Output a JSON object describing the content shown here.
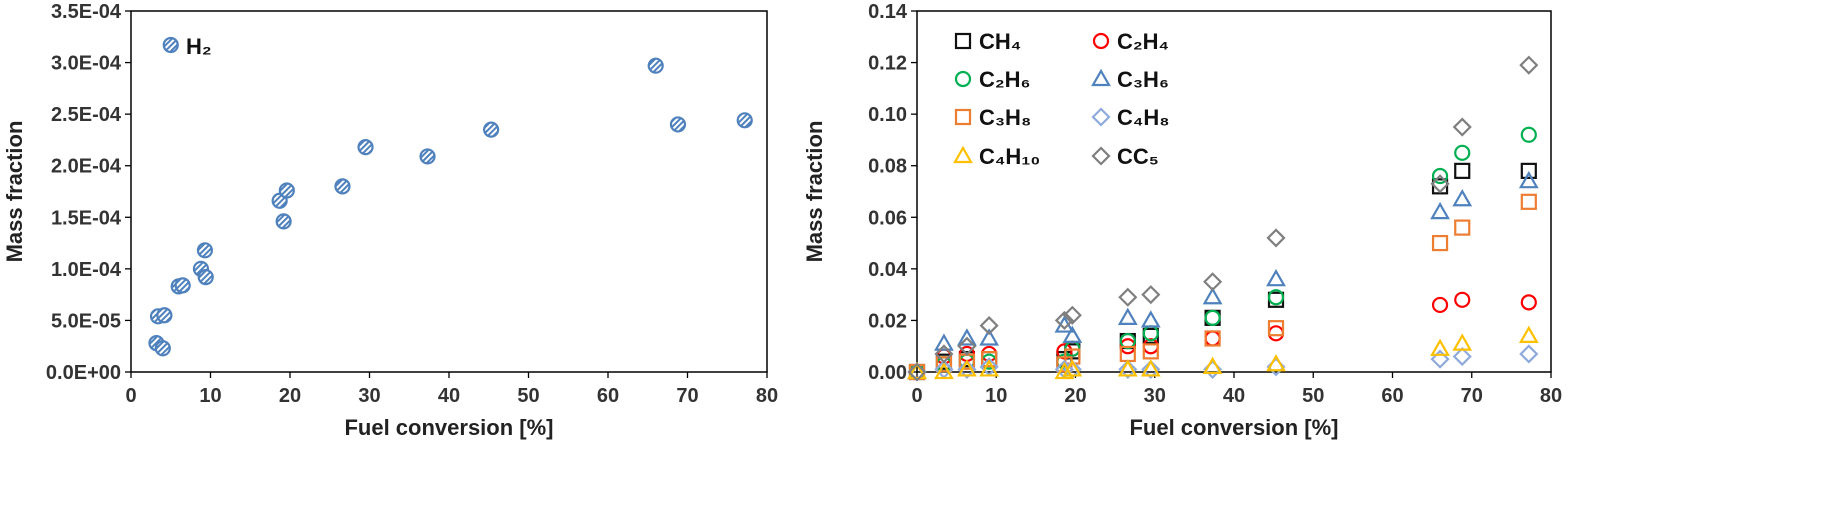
{
  "chart_data": [
    {
      "type": "scatter",
      "xlabel": "Fuel conversion [%]",
      "ylabel": "Mass fraction",
      "xlim": [
        0,
        80
      ],
      "ylim": [
        0,
        0.00035
      ],
      "xticks": [
        "0",
        "10",
        "20",
        "30",
        "40",
        "50",
        "60",
        "70",
        "80"
      ],
      "yticks": [
        "0.0E+00",
        "5.0E-05",
        "1.0E-04",
        "1.5E-04",
        "2.0E-04",
        "2.5E-04",
        "3.0E-04",
        "3.5E-04"
      ],
      "grid": false,
      "legend_position": "top-left",
      "series": [
        {
          "name": "H₂",
          "color": "#4f81bd",
          "marker": "hatched-circle",
          "points": [
            [
              3.2,
              2.8e-05
            ],
            [
              3.4,
              5.4e-05
            ],
            [
              4.2,
              5.5e-05
            ],
            [
              4.0,
              2.3e-05
            ],
            [
              5.0,
              0.000317
            ],
            [
              6.0,
              8.3e-05
            ],
            [
              6.5,
              8.4e-05
            ],
            [
              8.8,
              0.0001
            ],
            [
              9.3,
              0.000118
            ],
            [
              9.4,
              9.2e-05
            ],
            [
              18.7,
              0.000166
            ],
            [
              19.2,
              0.000146
            ],
            [
              19.6,
              0.000176
            ],
            [
              26.6,
              0.00018
            ],
            [
              29.5,
              0.000218
            ],
            [
              37.3,
              0.000209
            ],
            [
              45.3,
              0.000235
            ],
            [
              66.0,
              0.000297
            ],
            [
              68.8,
              0.00024
            ],
            [
              77.2,
              0.000244
            ]
          ]
        }
      ]
    },
    {
      "type": "scatter",
      "xlabel": "Fuel conversion [%]",
      "ylabel": "Mass fraction",
      "xlim": [
        0,
        80
      ],
      "ylim": [
        0,
        0.14
      ],
      "xticks": [
        "0",
        "10",
        "20",
        "30",
        "40",
        "50",
        "60",
        "70",
        "80"
      ],
      "yticks": [
        "0.00",
        "0.02",
        "0.04",
        "0.06",
        "0.08",
        "0.10",
        "0.12",
        "0.14"
      ],
      "grid": false,
      "legend_position": "top-left",
      "x": [
        0,
        3.4,
        6.3,
        9.1,
        18.6,
        19.6,
        26.6,
        29.5,
        37.3,
        45.3,
        66.0,
        68.8,
        77.2
      ],
      "series": [
        {
          "name": "CH₄",
          "color": "#111111",
          "marker": "square",
          "values": [
            0,
            0.004,
            0.005,
            0.005,
            0.005,
            0.008,
            0.012,
            0.014,
            0.021,
            0.028,
            0.072,
            0.078,
            0.078
          ]
        },
        {
          "name": "C₂H₄",
          "color": "#ff0000",
          "marker": "circle",
          "values": [
            0,
            0.006,
            0.007,
            0.007,
            0.008,
            0.009,
            0.01,
            0.01,
            0.013,
            0.015,
            0.026,
            0.028,
            0.027
          ]
        },
        {
          "name": "C₂H₆",
          "color": "#00b050",
          "marker": "circle",
          "values": [
            0,
            0.003,
            0.004,
            0.004,
            0.004,
            0.009,
            0.012,
            0.015,
            0.021,
            0.029,
            0.076,
            0.085,
            0.092
          ]
        },
        {
          "name": "C₃H₆",
          "color": "#4f81bd",
          "marker": "triangle",
          "values": [
            0,
            0.011,
            0.013,
            0.013,
            0.018,
            0.014,
            0.021,
            0.02,
            0.029,
            0.036,
            0.062,
            0.067,
            0.074
          ]
        },
        {
          "name": "C₃H₈",
          "color": "#ed7d31",
          "marker": "square",
          "values": [
            0,
            0.003,
            0.004,
            0.005,
            0.003,
            0.006,
            0.007,
            0.008,
            0.013,
            0.017,
            0.05,
            0.056,
            0.066
          ]
        },
        {
          "name": "C₄H₈",
          "color": "#8eaadb",
          "marker": "diamond",
          "values": [
            0,
            0.001,
            0.001,
            0.002,
            0.001,
            0.001,
            0.001,
            0.001,
            0.001,
            0.002,
            0.005,
            0.006,
            0.007
          ]
        },
        {
          "name": "C₄H₁₀",
          "color": "#ffc000",
          "marker": "triangle",
          "values": [
            0,
            0.0,
            0.001,
            0.001,
            0.0,
            0.001,
            0.001,
            0.001,
            0.002,
            0.003,
            0.009,
            0.011,
            0.014
          ]
        },
        {
          "name": "CC₅",
          "color": "#7f7f7f",
          "marker": "diamond",
          "values": [
            0,
            0.007,
            0.01,
            0.018,
            0.02,
            0.022,
            0.029,
            0.03,
            0.035,
            0.052,
            0.073,
            0.095,
            0.119
          ]
        }
      ]
    }
  ]
}
